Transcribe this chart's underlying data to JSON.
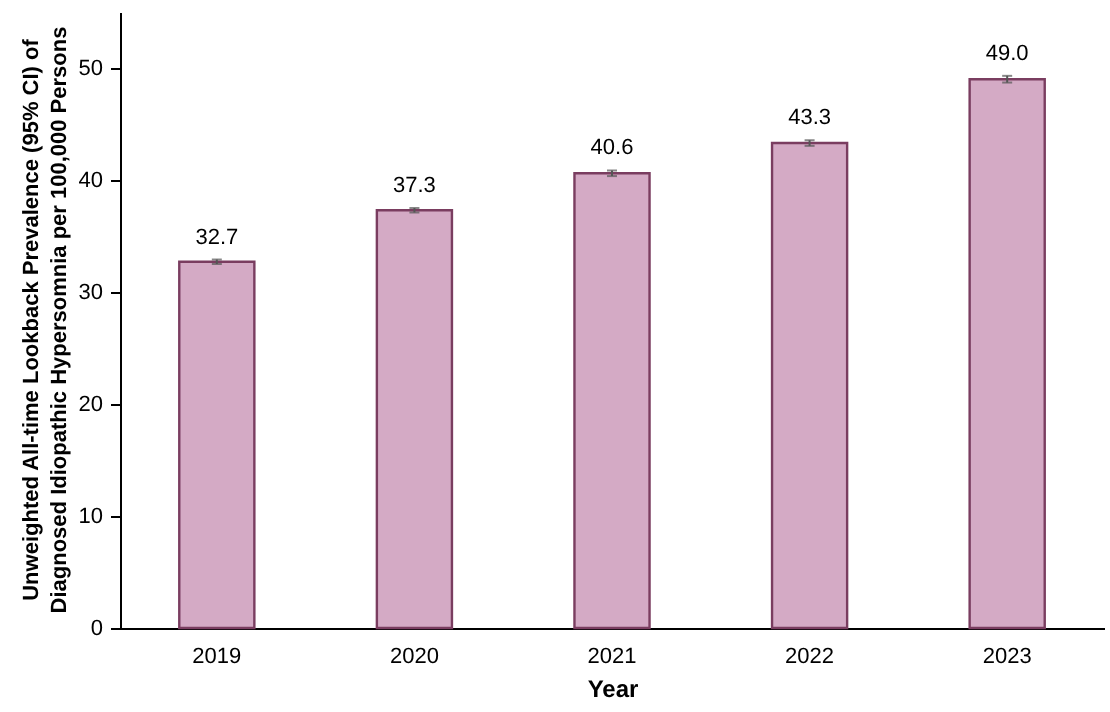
{
  "chart_data": {
    "type": "bar",
    "xlabel": "Year",
    "ylabel": "Unweighted All-time Lookback Prevalence (95% CI) of Diagnosed Idiopathic Hypersomnia per 100,000 Persons",
    "categories": [
      "2019",
      "2020",
      "2021",
      "2022",
      "2023"
    ],
    "values": [
      32.7,
      37.3,
      40.6,
      43.3,
      49.0
    ],
    "errors": [
      0.2,
      0.2,
      0.25,
      0.25,
      0.3
    ],
    "color": "#d4aac5",
    "value_labels": [
      "32.7",
      "37.3",
      "40.6",
      "43.3",
      "49.0"
    ],
    "ylim": [
      0,
      55
    ],
    "yticks": [
      0,
      10,
      20,
      30,
      40,
      50
    ],
    "grid": false
  }
}
